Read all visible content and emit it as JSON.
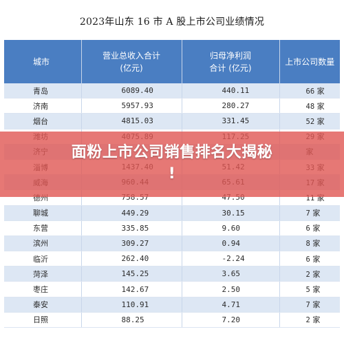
{
  "document": {
    "title": "2023年山东 16 市 A 股上市公司业绩情况"
  },
  "table": {
    "headers": {
      "city": "城市",
      "revenue_line1": "营业总收入合计",
      "revenue_line2": "(亿元)",
      "profit_line1": "归母净利润",
      "profit_line2": "合计 (亿元)",
      "count": "上市公司数量"
    },
    "rows": [
      {
        "city": "青岛",
        "revenue": "6089.40",
        "profit": "440.11",
        "count": "66",
        "unit": "家"
      },
      {
        "city": "济南",
        "revenue": "5957.93",
        "profit": "280.27",
        "count": "48",
        "unit": "家"
      },
      {
        "city": "烟台",
        "revenue": "4815.03",
        "profit": "331.45",
        "count": "52",
        "unit": "家"
      },
      {
        "city": "潍坊",
        "revenue": "4075.89",
        "profit": "117.25",
        "count": "29",
        "unit": "家"
      },
      {
        "city": "济宁",
        "revenue": "",
        "profit": "",
        "count": "",
        "unit": "家"
      },
      {
        "city": "淄博",
        "revenue": "1437.40",
        "profit": "51.42",
        "count": "33",
        "unit": "家"
      },
      {
        "city": "威海",
        "revenue": "960.44",
        "profit": "65.61",
        "count": "17",
        "unit": "家"
      },
      {
        "city": "德州",
        "revenue": "758.57",
        "profit": "47.50",
        "count": "11",
        "unit": "家"
      },
      {
        "city": "聊城",
        "revenue": "449.29",
        "profit": "30.15",
        "count": "7",
        "unit": "家"
      },
      {
        "city": "东营",
        "revenue": "335.85",
        "profit": "9.60",
        "count": "6",
        "unit": "家"
      },
      {
        "city": "滨州",
        "revenue": "309.27",
        "profit": "0.94",
        "count": "8",
        "unit": "家"
      },
      {
        "city": "临沂",
        "revenue": "262.40",
        "profit": "-2.24",
        "count": "6",
        "unit": "家"
      },
      {
        "city": "菏泽",
        "revenue": "145.25",
        "profit": "3.65",
        "count": "2",
        "unit": "家"
      },
      {
        "city": "枣庄",
        "revenue": "142.67",
        "profit": "2.50",
        "count": "5",
        "unit": "家"
      },
      {
        "city": "泰安",
        "revenue": "110.91",
        "profit": "4.71",
        "count": "7",
        "unit": "家"
      },
      {
        "city": "日照",
        "revenue": "88.25",
        "profit": "7.20",
        "count": "2",
        "unit": "家"
      }
    ]
  },
  "overlay": {
    "line1": "面粉上市公司销售排名大揭秘",
    "line2": "!"
  },
  "colors": {
    "header_bg": "#4a7ec2",
    "stripe": "#dde7f4",
    "overlay": "#e05652"
  }
}
